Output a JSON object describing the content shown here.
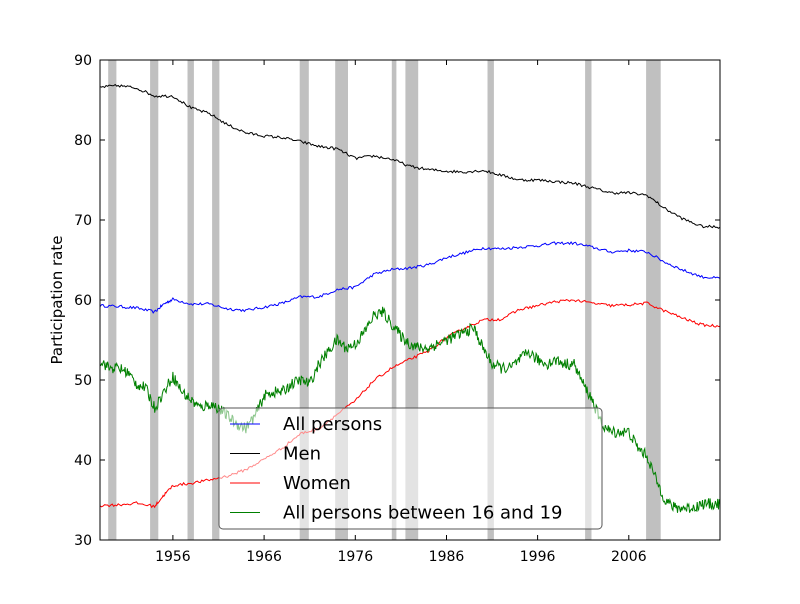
{
  "chart_data": {
    "type": "line",
    "title": "",
    "xlabel": "",
    "ylabel": "Participation rate",
    "xlim": [
      1948,
      2016
    ],
    "ylim": [
      30,
      90
    ],
    "xticks": [
      1956,
      1966,
      1976,
      1986,
      1996,
      2006
    ],
    "yticks": [
      30,
      40,
      50,
      60,
      70,
      80,
      90
    ],
    "grid": false,
    "legend_position": "lower-center",
    "recessions": [
      [
        1948.9,
        1949.8
      ],
      [
        1953.5,
        1954.4
      ],
      [
        1957.6,
        1958.3
      ],
      [
        1960.3,
        1961.1
      ],
      [
        1969.9,
        1970.9
      ],
      [
        1973.8,
        1975.2
      ],
      [
        1980.0,
        1980.5
      ],
      [
        1981.5,
        1982.9
      ],
      [
        1990.5,
        1991.2
      ],
      [
        2001.2,
        2001.9
      ],
      [
        2007.9,
        2009.5
      ]
    ],
    "series": [
      {
        "name": "All persons",
        "color": "#0000ff",
        "x": [
          1948,
          1950,
          1952,
          1954,
          1955,
          1956,
          1958,
          1960,
          1962,
          1964,
          1966,
          1968,
          1970,
          1972,
          1974,
          1976,
          1978,
          1980,
          1982,
          1984,
          1986,
          1988,
          1990,
          1992,
          1994,
          1996,
          1998,
          2000,
          2002,
          2004,
          2006,
          2008,
          2010,
          2012,
          2014,
          2016
        ],
        "values": [
          59.3,
          59.2,
          59.0,
          58.5,
          59.5,
          60.1,
          59.5,
          59.5,
          58.9,
          58.7,
          59.1,
          59.6,
          60.4,
          60.4,
          61.3,
          61.6,
          63.2,
          63.8,
          64.0,
          64.4,
          65.3,
          65.9,
          66.5,
          66.4,
          66.6,
          66.8,
          67.1,
          67.1,
          66.6,
          66.0,
          66.2,
          66.0,
          64.7,
          63.7,
          62.9,
          62.7
        ]
      },
      {
        "name": "Men",
        "color": "#000000",
        "x": [
          1948,
          1950,
          1952,
          1954,
          1956,
          1958,
          1960,
          1962,
          1964,
          1966,
          1968,
          1970,
          1972,
          1974,
          1976,
          1978,
          1980,
          1982,
          1984,
          1986,
          1988,
          1990,
          1992,
          1994,
          1996,
          1998,
          2000,
          2002,
          2004,
          2006,
          2008,
          2010,
          2012,
          2014,
          2016
        ],
        "values": [
          86.6,
          86.8,
          86.5,
          85.5,
          85.5,
          84.0,
          83.3,
          81.9,
          80.9,
          80.5,
          80.3,
          79.8,
          79.2,
          78.9,
          77.7,
          78.0,
          77.6,
          76.7,
          76.3,
          76.1,
          76.0,
          76.2,
          75.6,
          75.0,
          75.0,
          74.8,
          74.6,
          74.0,
          73.4,
          73.4,
          73.1,
          71.4,
          70.1,
          69.2,
          69.1
        ]
      },
      {
        "name": "Women",
        "color": "#ff0000",
        "x": [
          1948,
          1950,
          1952,
          1954,
          1955,
          1956,
          1958,
          1960,
          1962,
          1964,
          1966,
          1968,
          1970,
          1972,
          1974,
          1976,
          1978,
          1980,
          1982,
          1984,
          1986,
          1988,
          1990,
          1992,
          1994,
          1996,
          1998,
          2000,
          2002,
          2004,
          2006,
          2008,
          2010,
          2012,
          2014,
          2016
        ],
        "values": [
          34.3,
          34.4,
          34.6,
          34.2,
          35.6,
          36.8,
          37.1,
          37.5,
          38.0,
          38.8,
          40.1,
          41.5,
          43.3,
          43.9,
          45.7,
          47.4,
          49.9,
          51.5,
          52.6,
          53.6,
          55.3,
          56.5,
          57.5,
          57.6,
          58.8,
          59.3,
          59.8,
          60.0,
          59.6,
          59.3,
          59.4,
          59.6,
          58.6,
          57.7,
          56.9,
          56.7
        ]
      },
      {
        "name": "All persons between 16 and 19",
        "color": "#008000",
        "x": [
          1948,
          1949,
          1950,
          1951,
          1952,
          1953,
          1954,
          1955,
          1956,
          1957,
          1958,
          1959,
          1960,
          1961,
          1962,
          1963,
          1964,
          1965,
          1966,
          1967,
          1968,
          1969,
          1970,
          1971,
          1972,
          1973,
          1974,
          1975,
          1976,
          1977,
          1978,
          1979,
          1980,
          1981,
          1982,
          1983,
          1984,
          1985,
          1986,
          1987,
          1988,
          1989,
          1990,
          1991,
          1992,
          1993,
          1994,
          1995,
          1996,
          1997,
          1998,
          1999,
          2000,
          2001,
          2002,
          2003,
          2004,
          2005,
          2006,
          2007,
          2008,
          2009,
          2010,
          2011,
          2012,
          2013,
          2014,
          2015,
          2016
        ],
        "values": [
          52.5,
          51.5,
          51.5,
          51.0,
          49.5,
          49.0,
          46.5,
          48.5,
          50.5,
          48.5,
          47.5,
          46.5,
          47.0,
          46.5,
          45.5,
          44.5,
          44.0,
          45.5,
          48.0,
          48.5,
          48.5,
          49.5,
          50.0,
          49.5,
          52.0,
          53.5,
          55.0,
          54.0,
          54.5,
          56.0,
          58.0,
          58.5,
          57.0,
          55.5,
          54.5,
          54.0,
          54.0,
          54.5,
          55.0,
          55.5,
          56.0,
          56.5,
          54.0,
          52.0,
          51.5,
          51.5,
          52.5,
          53.5,
          52.5,
          52.0,
          52.5,
          52.0,
          52.0,
          49.5,
          47.5,
          44.5,
          43.5,
          43.5,
          43.5,
          41.5,
          40.5,
          37.5,
          35.0,
          34.0,
          34.0,
          34.0,
          34.5,
          34.5,
          34.5
        ]
      }
    ]
  }
}
